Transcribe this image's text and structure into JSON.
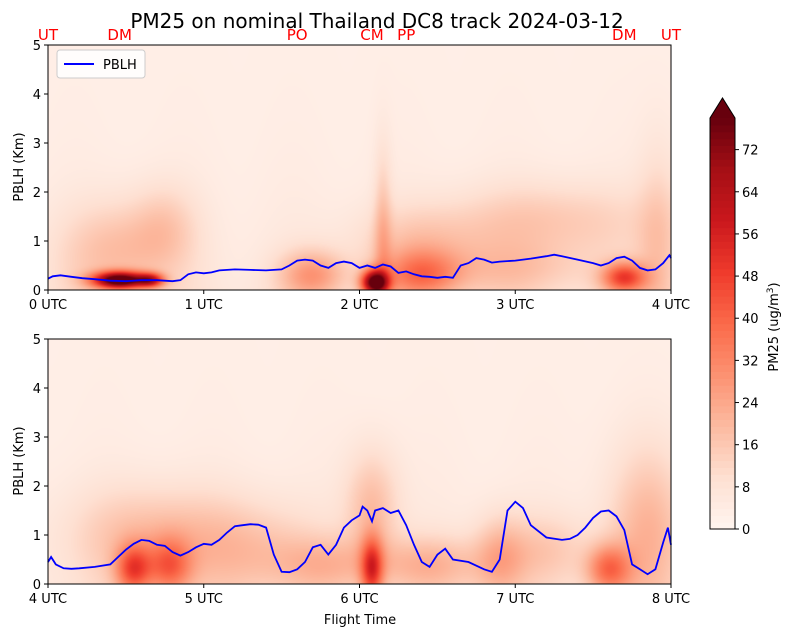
{
  "chart_data": {
    "type": "heatmap",
    "title": "PM25 on nominal Thailand DC8 track 2024-03-12",
    "xlabel": "Flight Time",
    "ylabel": "PBLH (Km)",
    "legend": {
      "label": "PBLH",
      "placement": "top-left",
      "color": "#0000ff"
    },
    "colorbar": {
      "label_text": "PM25 (ug/m",
      "label_sup": "3",
      "label_close": ")",
      "ticks": [
        "0",
        "8",
        "16",
        "24",
        "32",
        "40",
        "48",
        "56",
        "64",
        "72"
      ],
      "range": [
        0,
        78
      ],
      "extend": "max",
      "colormap": "Reds"
    },
    "panels": [
      {
        "name": "top",
        "xlim": [
          0,
          4
        ],
        "ylim": [
          0,
          5
        ],
        "xticks": [
          "0 UTC",
          "1 UTC",
          "2 UTC",
          "3 UTC",
          "4 UTC"
        ],
        "yticks": [
          "0",
          "1",
          "2",
          "3",
          "4",
          "5"
        ],
        "site_labels": [
          {
            "label": "UT",
            "x": 0.0
          },
          {
            "label": "DM",
            "x": 0.46
          },
          {
            "label": "PO",
            "x": 1.6
          },
          {
            "label": "CM",
            "x": 2.08
          },
          {
            "label": "PP",
            "x": 2.3
          },
          {
            "label": "DM",
            "x": 3.7
          },
          {
            "label": "UT",
            "x": 4.0
          }
        ],
        "pblh": [
          [
            0.0,
            0.23
          ],
          [
            0.03,
            0.28
          ],
          [
            0.08,
            0.3
          ],
          [
            0.15,
            0.27
          ],
          [
            0.22,
            0.24
          ],
          [
            0.3,
            0.22
          ],
          [
            0.4,
            0.19
          ],
          [
            0.5,
            0.18
          ],
          [
            0.6,
            0.2
          ],
          [
            0.7,
            0.2
          ],
          [
            0.8,
            0.18
          ],
          [
            0.85,
            0.2
          ],
          [
            0.9,
            0.32
          ],
          [
            0.95,
            0.36
          ],
          [
            1.0,
            0.34
          ],
          [
            1.05,
            0.36
          ],
          [
            1.1,
            0.4
          ],
          [
            1.2,
            0.42
          ],
          [
            1.3,
            0.41
          ],
          [
            1.4,
            0.4
          ],
          [
            1.5,
            0.42
          ],
          [
            1.55,
            0.5
          ],
          [
            1.6,
            0.6
          ],
          [
            1.65,
            0.62
          ],
          [
            1.7,
            0.6
          ],
          [
            1.75,
            0.5
          ],
          [
            1.8,
            0.45
          ],
          [
            1.85,
            0.55
          ],
          [
            1.9,
            0.58
          ],
          [
            1.95,
            0.55
          ],
          [
            2.0,
            0.45
          ],
          [
            2.05,
            0.5
          ],
          [
            2.1,
            0.45
          ],
          [
            2.15,
            0.52
          ],
          [
            2.2,
            0.48
          ],
          [
            2.25,
            0.35
          ],
          [
            2.3,
            0.38
          ],
          [
            2.35,
            0.32
          ],
          [
            2.4,
            0.28
          ],
          [
            2.45,
            0.27
          ],
          [
            2.5,
            0.25
          ],
          [
            2.55,
            0.27
          ],
          [
            2.6,
            0.25
          ],
          [
            2.65,
            0.5
          ],
          [
            2.7,
            0.55
          ],
          [
            2.75,
            0.65
          ],
          [
            2.8,
            0.62
          ],
          [
            2.85,
            0.56
          ],
          [
            2.9,
            0.58
          ],
          [
            3.0,
            0.6
          ],
          [
            3.1,
            0.64
          ],
          [
            3.2,
            0.69
          ],
          [
            3.25,
            0.72
          ],
          [
            3.3,
            0.69
          ],
          [
            3.4,
            0.62
          ],
          [
            3.5,
            0.55
          ],
          [
            3.55,
            0.5
          ],
          [
            3.6,
            0.55
          ],
          [
            3.65,
            0.65
          ],
          [
            3.7,
            0.68
          ],
          [
            3.75,
            0.6
          ],
          [
            3.8,
            0.45
          ],
          [
            3.85,
            0.4
          ],
          [
            3.9,
            0.42
          ],
          [
            3.95,
            0.55
          ],
          [
            3.99,
            0.71
          ],
          [
            4.0,
            0.65
          ]
        ],
        "heat": [
          {
            "x": 0.46,
            "y": 0.2,
            "sx": 0.12,
            "sy": 0.12,
            "v": 78
          },
          {
            "x": 0.66,
            "y": 0.2,
            "sx": 0.06,
            "sy": 0.1,
            "v": 40
          },
          {
            "x": 0.45,
            "y": 0.8,
            "sx": 0.25,
            "sy": 0.7,
            "v": 14
          },
          {
            "x": 0.75,
            "y": 1.3,
            "sx": 0.15,
            "sy": 0.6,
            "v": 9
          },
          {
            "x": 1.7,
            "y": 0.3,
            "sx": 0.15,
            "sy": 0.35,
            "v": 22
          },
          {
            "x": 2.1,
            "y": 0.15,
            "sx": 0.06,
            "sy": 0.18,
            "v": 75
          },
          {
            "x": 2.15,
            "y": 1.2,
            "sx": 0.04,
            "sy": 1.2,
            "v": 12
          },
          {
            "x": 2.4,
            "y": 0.3,
            "sx": 0.18,
            "sy": 0.35,
            "v": 28
          },
          {
            "x": 2.4,
            "y": 1.0,
            "sx": 0.3,
            "sy": 0.5,
            "v": 10
          },
          {
            "x": 3.2,
            "y": 1.4,
            "sx": 0.45,
            "sy": 0.55,
            "v": 12
          },
          {
            "x": 3.0,
            "y": 0.4,
            "sx": 0.35,
            "sy": 0.4,
            "v": 10
          },
          {
            "x": 3.7,
            "y": 0.25,
            "sx": 0.1,
            "sy": 0.22,
            "v": 40
          },
          {
            "x": 3.92,
            "y": 0.7,
            "sx": 0.1,
            "sy": 1.5,
            "v": 12
          }
        ]
      },
      {
        "name": "bottom",
        "xlim": [
          4,
          8
        ],
        "ylim": [
          0,
          5
        ],
        "xticks": [
          "4 UTC",
          "5 UTC",
          "6 UTC",
          "7 UTC",
          "8 UTC"
        ],
        "yticks": [
          "0",
          "1",
          "2",
          "3",
          "4",
          "5"
        ],
        "pblh": [
          [
            4.0,
            0.45
          ],
          [
            4.02,
            0.55
          ],
          [
            4.05,
            0.4
          ],
          [
            4.1,
            0.32
          ],
          [
            4.15,
            0.31
          ],
          [
            4.2,
            0.32
          ],
          [
            4.3,
            0.35
          ],
          [
            4.4,
            0.4
          ],
          [
            4.45,
            0.55
          ],
          [
            4.5,
            0.7
          ],
          [
            4.55,
            0.82
          ],
          [
            4.6,
            0.9
          ],
          [
            4.65,
            0.88
          ],
          [
            4.7,
            0.8
          ],
          [
            4.75,
            0.78
          ],
          [
            4.8,
            0.65
          ],
          [
            4.85,
            0.58
          ],
          [
            4.9,
            0.65
          ],
          [
            4.95,
            0.75
          ],
          [
            5.0,
            0.82
          ],
          [
            5.05,
            0.8
          ],
          [
            5.1,
            0.9
          ],
          [
            5.15,
            1.05
          ],
          [
            5.2,
            1.18
          ],
          [
            5.25,
            1.2
          ],
          [
            5.3,
            1.22
          ],
          [
            5.35,
            1.21
          ],
          [
            5.4,
            1.15
          ],
          [
            5.45,
            0.6
          ],
          [
            5.5,
            0.25
          ],
          [
            5.55,
            0.24
          ],
          [
            5.6,
            0.3
          ],
          [
            5.65,
            0.45
          ],
          [
            5.7,
            0.75
          ],
          [
            5.75,
            0.8
          ],
          [
            5.8,
            0.6
          ],
          [
            5.85,
            0.8
          ],
          [
            5.9,
            1.15
          ],
          [
            5.95,
            1.3
          ],
          [
            6.0,
            1.4
          ],
          [
            6.02,
            1.58
          ],
          [
            6.05,
            1.5
          ],
          [
            6.08,
            1.28
          ],
          [
            6.1,
            1.5
          ],
          [
            6.15,
            1.55
          ],
          [
            6.2,
            1.45
          ],
          [
            6.25,
            1.5
          ],
          [
            6.3,
            1.2
          ],
          [
            6.35,
            0.8
          ],
          [
            6.4,
            0.45
          ],
          [
            6.45,
            0.35
          ],
          [
            6.5,
            0.6
          ],
          [
            6.55,
            0.72
          ],
          [
            6.6,
            0.5
          ],
          [
            6.7,
            0.45
          ],
          [
            6.8,
            0.3
          ],
          [
            6.85,
            0.25
          ],
          [
            6.9,
            0.5
          ],
          [
            6.95,
            1.5
          ],
          [
            7.0,
            1.68
          ],
          [
            7.05,
            1.55
          ],
          [
            7.1,
            1.2
          ],
          [
            7.2,
            0.95
          ],
          [
            7.3,
            0.9
          ],
          [
            7.35,
            0.92
          ],
          [
            7.4,
            1.0
          ],
          [
            7.45,
            1.15
          ],
          [
            7.5,
            1.35
          ],
          [
            7.55,
            1.48
          ],
          [
            7.6,
            1.5
          ],
          [
            7.65,
            1.38
          ],
          [
            7.7,
            1.1
          ],
          [
            7.75,
            0.4
          ],
          [
            7.8,
            0.3
          ],
          [
            7.85,
            0.2
          ],
          [
            7.9,
            0.3
          ],
          [
            7.95,
            0.85
          ],
          [
            7.98,
            1.15
          ],
          [
            8.0,
            0.8
          ]
        ],
        "heat": [
          {
            "x": 4.55,
            "y": 0.3,
            "sx": 0.08,
            "sy": 0.35,
            "v": 35
          },
          {
            "x": 4.78,
            "y": 0.35,
            "sx": 0.1,
            "sy": 0.4,
            "v": 28
          },
          {
            "x": 4.65,
            "y": 1.0,
            "sx": 0.35,
            "sy": 0.7,
            "v": 14
          },
          {
            "x": 5.3,
            "y": 0.7,
            "sx": 0.3,
            "sy": 0.7,
            "v": 12
          },
          {
            "x": 5.8,
            "y": 0.4,
            "sx": 0.25,
            "sy": 0.4,
            "v": 12
          },
          {
            "x": 6.08,
            "y": 0.3,
            "sx": 0.05,
            "sy": 0.45,
            "v": 38
          },
          {
            "x": 6.08,
            "y": 1.6,
            "sx": 0.12,
            "sy": 0.8,
            "v": 15
          },
          {
            "x": 6.45,
            "y": 0.4,
            "sx": 0.25,
            "sy": 0.4,
            "v": 15
          },
          {
            "x": 6.9,
            "y": 0.5,
            "sx": 0.12,
            "sy": 0.6,
            "v": 16
          },
          {
            "x": 7.2,
            "y": 0.7,
            "sx": 0.2,
            "sy": 0.5,
            "v": 10
          },
          {
            "x": 7.6,
            "y": 0.3,
            "sx": 0.1,
            "sy": 0.35,
            "v": 30
          },
          {
            "x": 7.85,
            "y": 1.1,
            "sx": 0.18,
            "sy": 1.2,
            "v": 16
          }
        ]
      }
    ]
  }
}
